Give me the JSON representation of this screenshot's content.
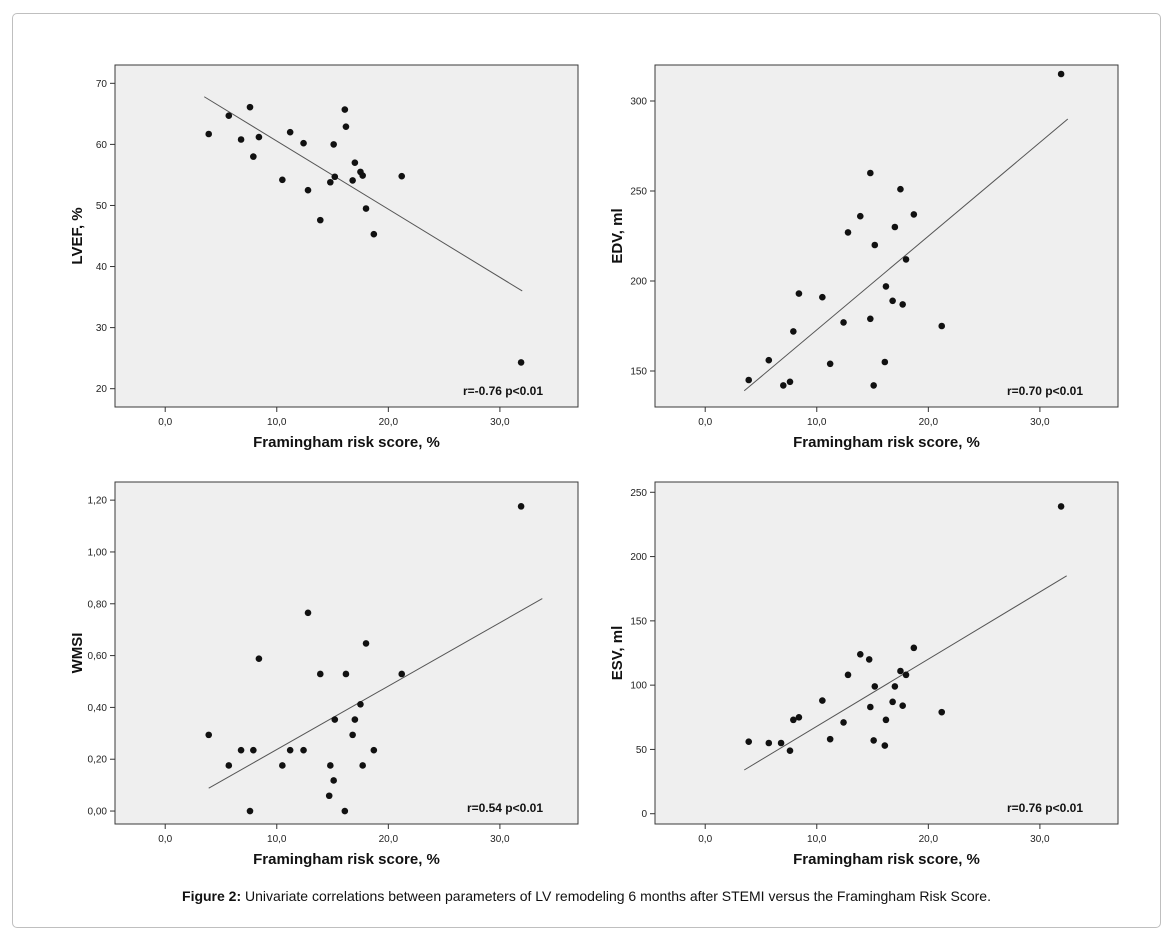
{
  "caption": {
    "label": "Figure 2:",
    "text": " Univariate correlations between parameters of LV remodeling 6 months after STEMI versus the Framingham Risk Score."
  },
  "chart_data": [
    {
      "type": "scatter",
      "xlabel": "Framingham risk score, %",
      "ylabel": "LVEF, %",
      "xlim": [
        -4.5,
        37
      ],
      "ylim": [
        17,
        73
      ],
      "x_ticks": [
        0,
        10,
        20,
        30
      ],
      "x_tick_labels": [
        "0,0",
        "10,0",
        "20,0",
        "30,0"
      ],
      "y_ticks": [
        20,
        30,
        40,
        50,
        60,
        70
      ],
      "y_tick_labels": [
        "20",
        "30",
        "40",
        "50",
        "60",
        "70"
      ],
      "points": [
        [
          3.9,
          61.7
        ],
        [
          5.7,
          64.7
        ],
        [
          6.8,
          60.8
        ],
        [
          7.6,
          66.1
        ],
        [
          7.9,
          58.0
        ],
        [
          8.4,
          61.2
        ],
        [
          10.5,
          54.2
        ],
        [
          11.2,
          62.0
        ],
        [
          12.4,
          60.2
        ],
        [
          12.8,
          52.5
        ],
        [
          13.9,
          47.6
        ],
        [
          14.8,
          53.8
        ],
        [
          15.1,
          60.0
        ],
        [
          15.2,
          54.7
        ],
        [
          16.1,
          65.7
        ],
        [
          16.2,
          62.9
        ],
        [
          16.8,
          54.1
        ],
        [
          17.0,
          57.0
        ],
        [
          17.5,
          55.5
        ],
        [
          17.7,
          54.9
        ],
        [
          18.0,
          49.5
        ],
        [
          18.7,
          45.3
        ],
        [
          21.2,
          54.8
        ],
        [
          31.9,
          24.3
        ]
      ],
      "trend_line": [
        [
          3.5,
          67.8
        ],
        [
          32.0,
          36.0
        ]
      ],
      "annotation": "r=-0.76 p<0.01"
    },
    {
      "type": "scatter",
      "xlabel": "Framingham risk score, %",
      "ylabel": "EDV, ml",
      "xlim": [
        -4.5,
        37
      ],
      "ylim": [
        130,
        320
      ],
      "x_ticks": [
        0,
        10,
        20,
        30
      ],
      "x_tick_labels": [
        "0,0",
        "10,0",
        "20,0",
        "30,0"
      ],
      "y_ticks": [
        150,
        200,
        250,
        300
      ],
      "y_tick_labels": [
        "150",
        "200",
        "250",
        "300"
      ],
      "points": [
        [
          3.9,
          145
        ],
        [
          5.7,
          156
        ],
        [
          7.0,
          142
        ],
        [
          7.6,
          144
        ],
        [
          7.9,
          172
        ],
        [
          8.4,
          193
        ],
        [
          10.5,
          191
        ],
        [
          11.2,
          154
        ],
        [
          12.4,
          177
        ],
        [
          12.8,
          227
        ],
        [
          13.9,
          236
        ],
        [
          14.8,
          260
        ],
        [
          14.8,
          179
        ],
        [
          15.1,
          142
        ],
        [
          15.2,
          220
        ],
        [
          16.1,
          155
        ],
        [
          16.2,
          197
        ],
        [
          16.8,
          189
        ],
        [
          17.0,
          230
        ],
        [
          17.5,
          251
        ],
        [
          17.7,
          187
        ],
        [
          18.0,
          212
        ],
        [
          18.7,
          237
        ],
        [
          21.2,
          175
        ],
        [
          31.9,
          315
        ]
      ],
      "trend_line": [
        [
          3.5,
          139
        ],
        [
          32.5,
          290
        ]
      ],
      "annotation": "r=0.70 p<0.01"
    },
    {
      "type": "scatter",
      "xlabel": "Framingham risk score, %",
      "ylabel": "WMSI",
      "xlim": [
        -4.5,
        37
      ],
      "ylim": [
        -0.05,
        1.27
      ],
      "x_ticks": [
        0,
        10,
        20,
        30
      ],
      "x_tick_labels": [
        "0,0",
        "10,0",
        "20,0",
        "30,0"
      ],
      "y_ticks": [
        0,
        0.2,
        0.4,
        0.6,
        0.8,
        1.0,
        1.2
      ],
      "y_tick_labels": [
        "0,00",
        "0,20",
        "0,40",
        "0,60",
        "0,80",
        "1,00",
        "1,20"
      ],
      "points": [
        [
          3.9,
          0.294
        ],
        [
          5.7,
          0.176
        ],
        [
          6.8,
          0.235
        ],
        [
          7.6,
          0.0
        ],
        [
          7.9,
          0.235
        ],
        [
          8.4,
          0.588
        ],
        [
          10.5,
          0.176
        ],
        [
          11.2,
          0.235
        ],
        [
          12.4,
          0.235
        ],
        [
          12.8,
          0.765
        ],
        [
          13.9,
          0.529
        ],
        [
          14.8,
          0.176
        ],
        [
          14.7,
          0.059
        ],
        [
          15.1,
          0.118
        ],
        [
          15.2,
          0.353
        ],
        [
          16.1,
          0.0
        ],
        [
          16.2,
          0.529
        ],
        [
          16.8,
          0.294
        ],
        [
          17.0,
          0.353
        ],
        [
          17.5,
          0.412
        ],
        [
          17.7,
          0.176
        ],
        [
          18.0,
          0.647
        ],
        [
          18.7,
          0.235
        ],
        [
          21.2,
          0.529
        ],
        [
          31.9,
          1.176
        ]
      ],
      "trend_line": [
        [
          3.9,
          0.088
        ],
        [
          33.8,
          0.82
        ]
      ],
      "annotation": "r=0.54 p<0.01"
    },
    {
      "type": "scatter",
      "xlabel": "Framingham risk score, %",
      "ylabel": "ESV, ml",
      "xlim": [
        -4.5,
        37
      ],
      "ylim": [
        -8,
        258
      ],
      "x_ticks": [
        0,
        10,
        20,
        30
      ],
      "x_tick_labels": [
        "0,0",
        "10,0",
        "20,0",
        "30,0"
      ],
      "y_ticks": [
        0,
        50,
        100,
        150,
        200,
        250
      ],
      "y_tick_labels": [
        "0",
        "50",
        "100",
        "150",
        "200",
        "250"
      ],
      "points": [
        [
          3.9,
          56
        ],
        [
          5.7,
          55
        ],
        [
          6.8,
          55
        ],
        [
          7.6,
          49
        ],
        [
          7.9,
          73
        ],
        [
          8.4,
          75
        ],
        [
          10.5,
          88
        ],
        [
          11.2,
          58
        ],
        [
          12.4,
          71
        ],
        [
          12.8,
          108
        ],
        [
          13.9,
          124
        ],
        [
          14.7,
          120
        ],
        [
          14.8,
          83
        ],
        [
          15.1,
          57
        ],
        [
          15.2,
          99
        ],
        [
          16.1,
          53
        ],
        [
          16.2,
          73
        ],
        [
          16.8,
          87
        ],
        [
          17.0,
          99
        ],
        [
          17.5,
          111
        ],
        [
          17.7,
          84
        ],
        [
          18.0,
          108
        ],
        [
          18.7,
          129
        ],
        [
          21.2,
          79
        ],
        [
          31.9,
          239
        ]
      ],
      "trend_line": [
        [
          3.5,
          34
        ],
        [
          32.4,
          185
        ]
      ],
      "annotation": "r=0.76 p<0.01"
    }
  ]
}
